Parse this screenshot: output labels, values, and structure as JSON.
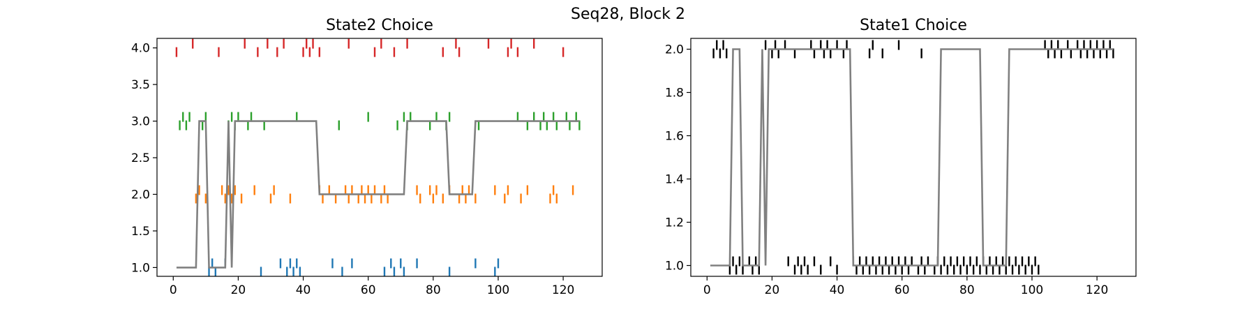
{
  "figure": {
    "suptitle": "Seq28, Block 2"
  },
  "chart_data": [
    {
      "type": "line",
      "title": "State2 Choice",
      "xlabel": "",
      "ylabel": "",
      "xlim": [
        -5,
        132
      ],
      "ylim": [
        0.88,
        4.13
      ],
      "x_ticks": [
        0,
        20,
        40,
        60,
        80,
        100,
        120
      ],
      "y_ticks": [
        1.0,
        1.5,
        2.0,
        2.5,
        3.0,
        3.5,
        4.0
      ],
      "y_tick_labels": [
        "1.0",
        "1.5",
        "2.0",
        "2.5",
        "3.0",
        "3.5",
        "4.0"
      ],
      "grid": false,
      "line": {
        "name": "",
        "color": "#808080",
        "points": [
          [
            1,
            1
          ],
          [
            7,
            1
          ],
          [
            8,
            3
          ],
          [
            10,
            3
          ],
          [
            11,
            1
          ],
          [
            16,
            1
          ],
          [
            17,
            3
          ],
          [
            18,
            1
          ],
          [
            19,
            3
          ],
          [
            44,
            3
          ],
          [
            45,
            2
          ],
          [
            71,
            2
          ],
          [
            72,
            3
          ],
          [
            84,
            3
          ],
          [
            85,
            2
          ],
          [
            92,
            2
          ],
          [
            93,
            3
          ],
          [
            125,
            3
          ]
        ]
      },
      "event_marks": [
        {
          "name": "",
          "color": "#d62728",
          "y": 4.0,
          "x": [
            1,
            6,
            14,
            22,
            26,
            29,
            32,
            34,
            40,
            41,
            42,
            43,
            45,
            54,
            62,
            64,
            68,
            72,
            83,
            87,
            88,
            97,
            103,
            104,
            106,
            111,
            120
          ]
        },
        {
          "name": "",
          "color": "#2ca02c",
          "y": 3.0,
          "x": [
            2,
            3,
            4,
            5,
            9,
            10,
            17,
            18,
            19,
            20,
            23,
            24,
            28,
            38,
            51,
            60,
            69,
            71,
            72,
            73,
            79,
            81,
            84,
            85,
            94,
            106,
            109,
            111,
            113,
            114,
            115,
            117,
            118,
            121,
            122,
            124,
            125
          ]
        },
        {
          "name": "",
          "color": "#ff7f0e",
          "y": 2.0,
          "x": [
            7,
            8,
            10,
            15,
            16,
            17,
            18,
            19,
            21,
            25,
            30,
            31,
            36,
            45,
            46,
            48,
            50,
            53,
            54,
            55,
            57,
            58,
            59,
            60,
            61,
            62,
            64,
            65,
            66,
            75,
            76,
            79,
            80,
            81,
            83,
            85,
            88,
            89,
            90,
            91,
            93,
            99,
            102,
            103,
            107,
            109,
            116,
            117,
            118,
            123
          ]
        },
        {
          "name": "",
          "color": "#1f77b4",
          "y": 1.0,
          "x": [
            11,
            12,
            13,
            16,
            27,
            33,
            35,
            36,
            37,
            38,
            39,
            49,
            52,
            55,
            65,
            67,
            68,
            70,
            71,
            75,
            85,
            93,
            99,
            100
          ]
        }
      ]
    },
    {
      "type": "line",
      "title": "State1 Choice",
      "xlabel": "",
      "ylabel": "",
      "xlim": [
        -5,
        132
      ],
      "ylim": [
        0.95,
        2.05
      ],
      "x_ticks": [
        0,
        20,
        40,
        60,
        80,
        100,
        120
      ],
      "y_ticks": [
        1.0,
        1.2,
        1.4,
        1.6,
        1.8,
        2.0
      ],
      "y_tick_labels": [
        "1.0",
        "1.2",
        "1.4",
        "1.6",
        "1.8",
        "2.0"
      ],
      "grid": false,
      "line": {
        "name": "",
        "color": "#808080",
        "points": [
          [
            1,
            1
          ],
          [
            7,
            1
          ],
          [
            8,
            2
          ],
          [
            10,
            2
          ],
          [
            11,
            1
          ],
          [
            16,
            1
          ],
          [
            17,
            2
          ],
          [
            18,
            1
          ],
          [
            19,
            2
          ],
          [
            44,
            2
          ],
          [
            45,
            1
          ],
          [
            71,
            1
          ],
          [
            72,
            2
          ],
          [
            84,
            2
          ],
          [
            85,
            1
          ],
          [
            92,
            1
          ],
          [
            93,
            2
          ],
          [
            125,
            2
          ]
        ]
      },
      "event_marks": [
        {
          "name": "",
          "color": "#000000",
          "y": 2.0,
          "x": [
            2,
            3,
            4,
            5,
            6,
            18,
            20,
            21,
            22,
            24,
            27,
            32,
            33,
            35,
            36,
            37,
            38,
            40,
            42,
            43,
            50,
            51,
            54,
            59,
            66,
            104,
            105,
            106,
            107,
            108,
            109,
            111,
            112,
            114,
            115,
            116,
            117,
            118,
            119,
            120,
            121,
            122,
            123,
            124,
            125
          ]
        },
        {
          "name": "",
          "color": "#000000",
          "y": 1.0,
          "x": [
            7,
            8,
            9,
            10,
            11,
            13,
            14,
            15,
            16,
            25,
            27,
            28,
            29,
            30,
            31,
            33,
            35,
            38,
            40,
            45,
            46,
            47,
            48,
            49,
            50,
            51,
            52,
            53,
            54,
            55,
            56,
            57,
            58,
            59,
            60,
            61,
            62,
            63,
            65,
            66,
            67,
            68,
            70,
            71,
            72,
            73,
            74,
            75,
            76,
            77,
            78,
            79,
            80,
            81,
            82,
            83,
            84,
            85,
            86,
            87,
            88,
            89,
            90,
            91,
            92,
            93,
            94,
            95,
            96,
            97,
            98,
            99,
            100,
            101,
            102
          ]
        }
      ]
    }
  ]
}
